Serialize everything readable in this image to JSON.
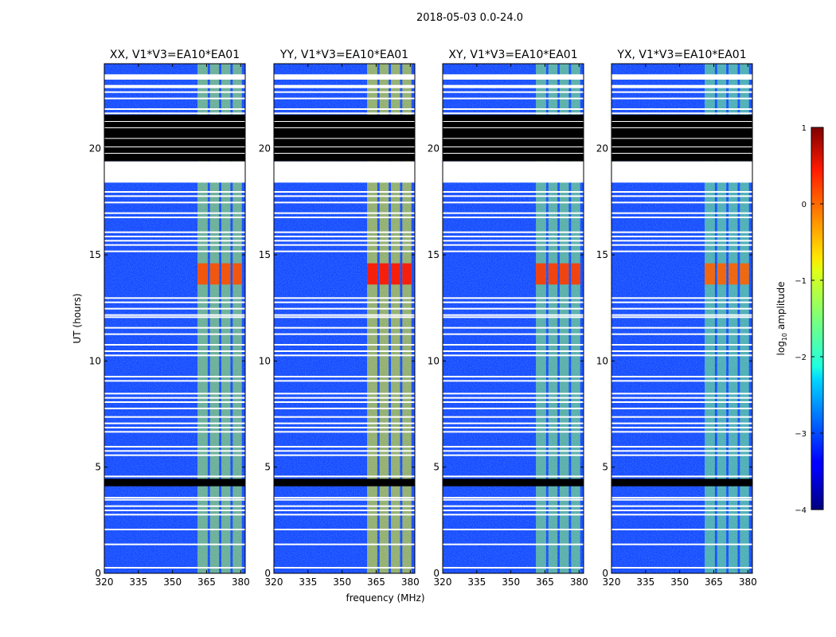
{
  "figure_title": "2018-05-03 0.0-24.0",
  "chart_data": {
    "type": "heatmap",
    "title": "2018-05-03 0.0-24.0",
    "xlabel": "frequency (MHz)",
    "ylabel": "UT (hours)",
    "xlim": [
      320,
      382
    ],
    "ylim": [
      0,
      24
    ],
    "xticks": [
      320,
      335,
      350,
      365,
      380
    ],
    "yticks": [
      0,
      5,
      10,
      15,
      20
    ],
    "panels": [
      {
        "name": "XX, V1*V3=EA10*EA01",
        "rfi_level": 0.55,
        "burst_level": 0.8
      },
      {
        "name": "YY, V1*V3=EA10*EA01",
        "rfi_level": 0.62,
        "burst_level": 0.86
      },
      {
        "name": "XY, V1*V3=EA10*EA01",
        "rfi_level": 0.52,
        "burst_level": 0.82
      },
      {
        "name": "YX, V1*V3=EA10*EA01",
        "rfi_level": 0.5,
        "burst_level": 0.78
      }
    ],
    "rfi_channels_mhz": [
      [
        361,
        365.5
      ],
      [
        366.5,
        370.5
      ],
      [
        371.5,
        375.5
      ],
      [
        376.5,
        380.5
      ]
    ],
    "rfi_burst_hours": [
      13.6,
      14.6
    ],
    "blank_time_ranges_hours": [
      [
        18.4,
        19.4
      ],
      [
        23.25,
        23.5
      ],
      [
        22.85,
        23.0
      ]
    ],
    "flagged_time_ranges_hours": [
      [
        19.4,
        21.6
      ],
      [
        4.1,
        4.45
      ]
    ],
    "time_gaps_hours": [
      0.3,
      1.4,
      2.1,
      2.8,
      3.0,
      3.2,
      3.5,
      3.6,
      4.6,
      5.6,
      5.8,
      6.0,
      6.7,
      6.9,
      7.1,
      7.4,
      7.8,
      8.1,
      8.3,
      8.5,
      9.1,
      9.3,
      10.3,
      10.5,
      10.8,
      11.3,
      11.6,
      12.1,
      12.2,
      12.5,
      12.8,
      13.0,
      15.2,
      15.5,
      15.7,
      15.9,
      16.1,
      16.8,
      17.0,
      17.5,
      17.8,
      18.0,
      21.7,
      21.9,
      22.4,
      22.7
    ],
    "colorbar": {
      "label": "log10 amplitude",
      "label_main": "log",
      "label_sub": "10",
      "label_rest": " amplitude",
      "min": -4,
      "max": 1,
      "ticks": [
        1,
        0,
        -1,
        -2,
        -3,
        -4
      ],
      "tick_labels": [
        "1",
        "0",
        "−1",
        "−2",
        "−3",
        "−4"
      ]
    },
    "colormap": "jet"
  }
}
